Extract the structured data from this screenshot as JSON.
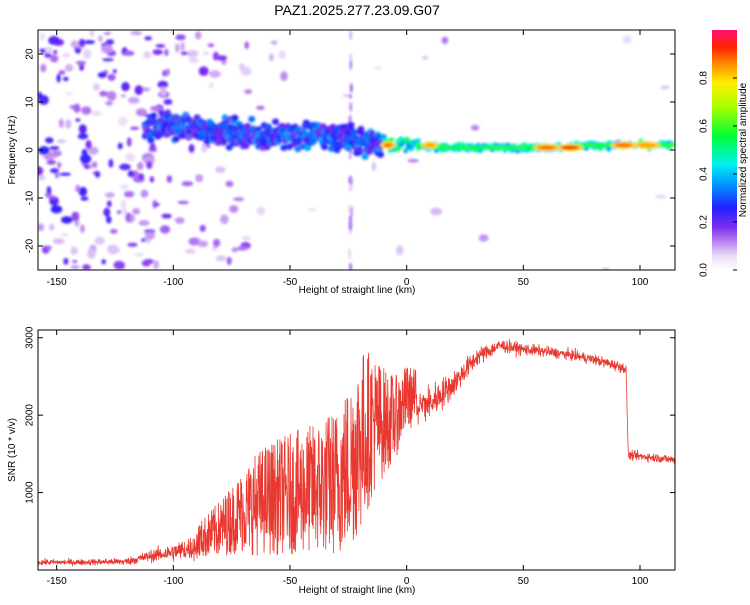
{
  "title": "PAZ1.2025.277.23.09.G07",
  "chart_data": [
    {
      "type": "heatmap",
      "xlabel": "Height of straight line (km)",
      "ylabel": "Frequency (Hz)",
      "xlim": [
        -158,
        115
      ],
      "ylim": [
        -25,
        25
      ],
      "xticks": [
        -150,
        -100,
        -50,
        0,
        50,
        100
      ],
      "yticks": [
        -20,
        -10,
        0,
        10,
        20
      ],
      "colorbar": {
        "label": "Normalized spectral amplitude",
        "range": [
          0,
          1
        ],
        "ticks": [
          "0.0",
          "0.2",
          "0.4",
          "0.6",
          "0.8"
        ],
        "colormap": "rainbow (white-lavender-purple-blue-cyan-green-yellow-red-magenta)"
      },
      "ridge": [
        {
          "x": -110,
          "y": 5
        },
        {
          "x": -100,
          "y": 5
        },
        {
          "x": -80,
          "y": 4
        },
        {
          "x": -65,
          "y": 3
        },
        {
          "x": -50,
          "y": 3
        },
        {
          "x": -35,
          "y": 3
        },
        {
          "x": -20,
          "y": 2
        },
        {
          "x": -10,
          "y": 1.5
        },
        {
          "x": 0,
          "y": 1
        },
        {
          "x": 20,
          "y": 0.5
        },
        {
          "x": 40,
          "y": 0.5
        },
        {
          "x": 60,
          "y": 0.5
        },
        {
          "x": 80,
          "y": 1
        },
        {
          "x": 100,
          "y": 1
        },
        {
          "x": 112,
          "y": 1
        }
      ],
      "hotspots": [
        {
          "x": -8,
          "y": 1,
          "amplitude": 0.95
        },
        {
          "x": 10,
          "y": 1,
          "amplitude": 0.9
        },
        {
          "x": 60,
          "y": 0.5,
          "amplitude": 0.95
        },
        {
          "x": 70,
          "y": 0.5,
          "amplitude": 1.0
        },
        {
          "x": 93,
          "y": 1,
          "amplitude": 0.95
        },
        {
          "x": 103,
          "y": 1,
          "amplitude": 0.9
        }
      ]
    },
    {
      "type": "line",
      "xlabel": "Height of straight line (km)",
      "ylabel": "SNR (10 * v/v)",
      "xlim": [
        -158,
        115
      ],
      "ylim": [
        0,
        3100
      ],
      "xticks": [
        -150,
        -100,
        -50,
        0,
        50,
        100
      ],
      "yticks": [
        1000,
        2000,
        3000
      ],
      "series": [
        {
          "name": "SNR",
          "color": "#e8382f",
          "x": [
            -158,
            -140,
            -120,
            -110,
            -100,
            -90,
            -80,
            -70,
            -65,
            -60,
            -50,
            -40,
            -30,
            -25,
            -20,
            -15,
            -10,
            -5,
            0,
            10,
            20,
            30,
            40,
            50,
            60,
            70,
            80,
            90,
            94,
            95,
            100,
            110,
            115
          ],
          "y": [
            100,
            100,
            110,
            180,
            230,
            300,
            430,
            600,
            650,
            700,
            750,
            800,
            850,
            1000,
            1300,
            1600,
            1700,
            1800,
            2100,
            2150,
            2400,
            2750,
            2900,
            2850,
            2820,
            2780,
            2720,
            2640,
            2600,
            1480,
            1470,
            1440,
            1420
          ],
          "noise_amplitude": [
            40,
            40,
            50,
            80,
            120,
            180,
            300,
            450,
            550,
            600,
            650,
            700,
            800,
            900,
            1000,
            800,
            600,
            450,
            350,
            250,
            180,
            120,
            90,
            80,
            70,
            70,
            70,
            70,
            70,
            60,
            60,
            60,
            60
          ]
        }
      ]
    }
  ]
}
